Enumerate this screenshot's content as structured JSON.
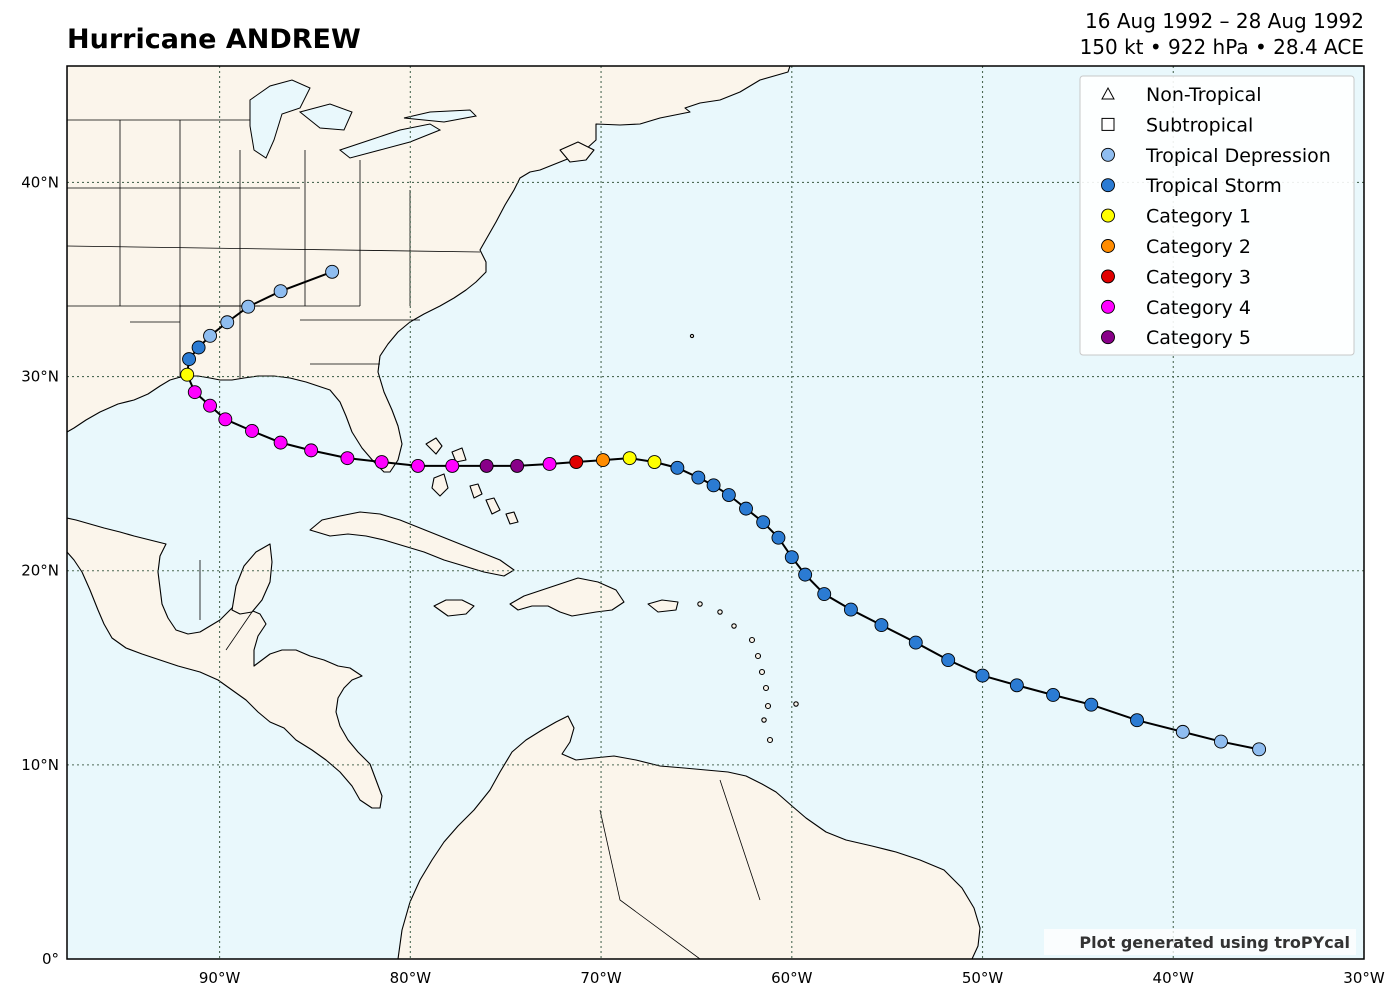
{
  "header": {
    "title": "Hurricane ANDREW",
    "date_range": "16 Aug 1992 – 28 Aug 1992",
    "stats": "150 kt • 922 hPa • 28.4 ACE"
  },
  "credit": "Plot generated using troPYcal",
  "colors": {
    "ocean": "#e9f8fc",
    "land": "#fbf5eb",
    "coast": "#000000",
    "grid": "#4d6a55",
    "track": "#000000"
  },
  "legend": [
    {
      "label": "Non-Tropical",
      "marker": "triangle",
      "color": "#ffffff"
    },
    {
      "label": "Subtropical",
      "marker": "square",
      "color": "#ffffff"
    },
    {
      "label": "Tropical Depression",
      "marker": "circle",
      "color": "#8fbdf0"
    },
    {
      "label": "Tropical Storm",
      "marker": "circle",
      "color": "#2b7bd3"
    },
    {
      "label": "Category 1",
      "marker": "circle",
      "color": "#ffff00"
    },
    {
      "label": "Category 2",
      "marker": "circle",
      "color": "#ff8c00"
    },
    {
      "label": "Category 3",
      "marker": "circle",
      "color": "#e00000"
    },
    {
      "label": "Category 4",
      "marker": "circle",
      "color": "#ff00ff"
    },
    {
      "label": "Category 5",
      "marker": "circle",
      "color": "#880088"
    }
  ],
  "chart_data": {
    "type": "scatter",
    "title": "Hurricane ANDREW",
    "xlim": [
      -98,
      -30
    ],
    "ylim": [
      0,
      46
    ],
    "grid": true,
    "legend_position": "top-right",
    "x_ticks": [
      {
        "value": -90,
        "label": "90°W"
      },
      {
        "value": -80,
        "label": "80°W"
      },
      {
        "value": -70,
        "label": "70°W"
      },
      {
        "value": -60,
        "label": "60°W"
      },
      {
        "value": -50,
        "label": "50°W"
      },
      {
        "value": -40,
        "label": "40°W"
      },
      {
        "value": -30,
        "label": "30°W"
      }
    ],
    "y_ticks": [
      {
        "value": 0,
        "label": "0°"
      },
      {
        "value": 10,
        "label": "10°N"
      },
      {
        "value": 20,
        "label": "20°N"
      },
      {
        "value": 30,
        "label": "30°N"
      },
      {
        "value": 40,
        "label": "40°N"
      }
    ],
    "track": [
      {
        "lon": -35.5,
        "lat": 10.8,
        "cat": "TD"
      },
      {
        "lon": -37.5,
        "lat": 11.2,
        "cat": "TD"
      },
      {
        "lon": -39.5,
        "lat": 11.7,
        "cat": "TD"
      },
      {
        "lon": -41.9,
        "lat": 12.3,
        "cat": "TS"
      },
      {
        "lon": -44.3,
        "lat": 13.1,
        "cat": "TS"
      },
      {
        "lon": -46.3,
        "lat": 13.6,
        "cat": "TS"
      },
      {
        "lon": -48.2,
        "lat": 14.1,
        "cat": "TS"
      },
      {
        "lon": -50.0,
        "lat": 14.6,
        "cat": "TS"
      },
      {
        "lon": -51.8,
        "lat": 15.4,
        "cat": "TS"
      },
      {
        "lon": -53.5,
        "lat": 16.3,
        "cat": "TS"
      },
      {
        "lon": -55.3,
        "lat": 17.2,
        "cat": "TS"
      },
      {
        "lon": -56.9,
        "lat": 18.0,
        "cat": "TS"
      },
      {
        "lon": -58.3,
        "lat": 18.8,
        "cat": "TS"
      },
      {
        "lon": -59.3,
        "lat": 19.8,
        "cat": "TS"
      },
      {
        "lon": -60.0,
        "lat": 20.7,
        "cat": "TS"
      },
      {
        "lon": -60.7,
        "lat": 21.7,
        "cat": "TS"
      },
      {
        "lon": -61.5,
        "lat": 22.5,
        "cat": "TS"
      },
      {
        "lon": -62.4,
        "lat": 23.2,
        "cat": "TS"
      },
      {
        "lon": -63.3,
        "lat": 23.9,
        "cat": "TS"
      },
      {
        "lon": -64.1,
        "lat": 24.4,
        "cat": "TS"
      },
      {
        "lon": -64.9,
        "lat": 24.8,
        "cat": "TS"
      },
      {
        "lon": -66.0,
        "lat": 25.3,
        "cat": "TS"
      },
      {
        "lon": -67.2,
        "lat": 25.6,
        "cat": "C1"
      },
      {
        "lon": -68.5,
        "lat": 25.8,
        "cat": "C1"
      },
      {
        "lon": -69.9,
        "lat": 25.7,
        "cat": "C2"
      },
      {
        "lon": -71.3,
        "lat": 25.6,
        "cat": "C3"
      },
      {
        "lon": -72.7,
        "lat": 25.5,
        "cat": "C4"
      },
      {
        "lon": -74.4,
        "lat": 25.4,
        "cat": "C5"
      },
      {
        "lon": -76.0,
        "lat": 25.4,
        "cat": "C5"
      },
      {
        "lon": -77.8,
        "lat": 25.4,
        "cat": "C4"
      },
      {
        "lon": -79.6,
        "lat": 25.4,
        "cat": "C4"
      },
      {
        "lon": -81.5,
        "lat": 25.6,
        "cat": "C4"
      },
      {
        "lon": -83.3,
        "lat": 25.8,
        "cat": "C4"
      },
      {
        "lon": -85.2,
        "lat": 26.2,
        "cat": "C4"
      },
      {
        "lon": -86.8,
        "lat": 26.6,
        "cat": "C4"
      },
      {
        "lon": -88.3,
        "lat": 27.2,
        "cat": "C4"
      },
      {
        "lon": -89.7,
        "lat": 27.8,
        "cat": "C4"
      },
      {
        "lon": -90.5,
        "lat": 28.5,
        "cat": "C4"
      },
      {
        "lon": -91.3,
        "lat": 29.2,
        "cat": "C4"
      },
      {
        "lon": -91.7,
        "lat": 30.1,
        "cat": "C1"
      },
      {
        "lon": -91.6,
        "lat": 30.9,
        "cat": "TS"
      },
      {
        "lon": -91.1,
        "lat": 31.5,
        "cat": "TS"
      },
      {
        "lon": -90.5,
        "lat": 32.1,
        "cat": "TD"
      },
      {
        "lon": -89.6,
        "lat": 32.8,
        "cat": "TD"
      },
      {
        "lon": -88.5,
        "lat": 33.6,
        "cat": "TD"
      },
      {
        "lon": -86.8,
        "lat": 34.4,
        "cat": "TD"
      },
      {
        "lon": -84.1,
        "lat": 35.4,
        "cat": "TD"
      }
    ]
  }
}
